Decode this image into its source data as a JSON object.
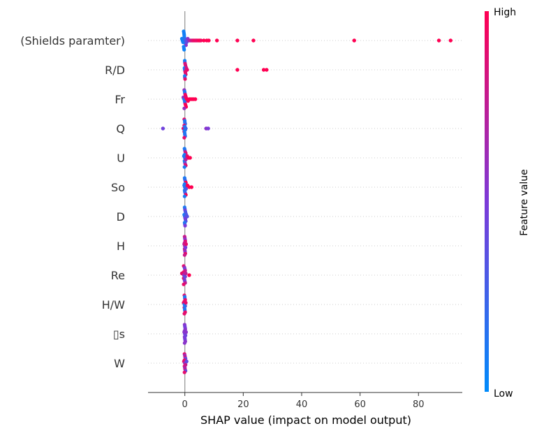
{
  "chart_data": {
    "type": "scatter",
    "subtype": "shap-beeswarm",
    "xlabel": "SHAP value (impact on model output)",
    "xlim": [
      -12.6,
      95
    ],
    "xticks": [
      0,
      20,
      40,
      60,
      80
    ],
    "zero_line": true,
    "colorbar": {
      "title": "Feature value",
      "high_label": "High",
      "low_label": "Low",
      "low_color": "#008bfb",
      "mid_color": "#7c3ad8",
      "high_color": "#ff0052"
    },
    "features": [
      {
        "name": "(Shields paramter)",
        "points": [
          {
            "v": -1.0,
            "c": 0.05
          },
          {
            "v": -0.8,
            "c": 0.1
          },
          {
            "v": -0.6,
            "c": 0.05
          },
          {
            "v": -0.5,
            "c": 0.1
          },
          {
            "v": -0.4,
            "c": 0.05
          },
          {
            "v": -0.2,
            "c": 0.1
          },
          {
            "v": 0.0,
            "c": 0.15
          },
          {
            "v": 0.3,
            "c": 0.3
          },
          {
            "v": 0.6,
            "c": 0.4
          },
          {
            "v": 1.0,
            "c": 0.55
          },
          {
            "v": 1.5,
            "c": 0.65
          },
          {
            "v": 2.0,
            "c": 0.75
          },
          {
            "v": 2.5,
            "c": 0.85
          },
          {
            "v": 3.0,
            "c": 0.9
          },
          {
            "v": 3.5,
            "c": 0.95
          },
          {
            "v": 4.0,
            "c": 0.9
          },
          {
            "v": 4.5,
            "c": 0.95
          },
          {
            "v": 5.0,
            "c": 1.0
          },
          {
            "v": 5.5,
            "c": 0.95
          },
          {
            "v": 6.5,
            "c": 1.0
          },
          {
            "v": 7.5,
            "c": 1.0
          },
          {
            "v": 8.2,
            "c": 1.0
          },
          {
            "v": 11.0,
            "c": 1.0
          },
          {
            "v": 18.0,
            "c": 1.0
          },
          {
            "v": 23.5,
            "c": 1.0
          },
          {
            "v": 58.0,
            "c": 1.0
          },
          {
            "v": 87.0,
            "c": 1.0
          },
          {
            "v": 91.0,
            "c": 1.0
          }
        ]
      },
      {
        "name": "R/D",
        "points": [
          {
            "v": -0.1,
            "c": 0.05
          },
          {
            "v": 0.0,
            "c": 0.2
          },
          {
            "v": 0.2,
            "c": 0.9
          },
          {
            "v": 0.5,
            "c": 0.8
          },
          {
            "v": 0.8,
            "c": 0.9
          },
          {
            "v": 18.0,
            "c": 1.0
          },
          {
            "v": 27.0,
            "c": 1.0
          },
          {
            "v": 28.0,
            "c": 1.0
          }
        ]
      },
      {
        "name": "Fr",
        "points": [
          {
            "v": -0.5,
            "c": 0.6
          },
          {
            "v": -0.2,
            "c": 0.1
          },
          {
            "v": 0.0,
            "c": 0.15
          },
          {
            "v": 0.3,
            "c": 0.9
          },
          {
            "v": 0.7,
            "c": 1.0
          },
          {
            "v": 1.1,
            "c": 1.0
          },
          {
            "v": 1.5,
            "c": 1.0
          },
          {
            "v": 2.0,
            "c": 1.0
          },
          {
            "v": 2.5,
            "c": 1.0
          },
          {
            "v": 3.0,
            "c": 1.0
          },
          {
            "v": 3.6,
            "c": 1.0
          }
        ]
      },
      {
        "name": "Q",
        "points": [
          {
            "v": -7.5,
            "c": 0.45
          },
          {
            "v": -0.5,
            "c": 0.9
          },
          {
            "v": -0.1,
            "c": 0.1
          },
          {
            "v": 0.0,
            "c": 0.15
          },
          {
            "v": 0.3,
            "c": 0.2
          },
          {
            "v": 7.3,
            "c": 0.55
          },
          {
            "v": 8.0,
            "c": 0.5
          }
        ]
      },
      {
        "name": "U",
        "points": [
          {
            "v": -0.3,
            "c": 0.1
          },
          {
            "v": 0.0,
            "c": 0.15
          },
          {
            "v": 0.3,
            "c": 0.7
          },
          {
            "v": 0.8,
            "c": 0.9
          },
          {
            "v": 1.3,
            "c": 1.0
          },
          {
            "v": 1.8,
            "c": 1.0
          }
        ]
      },
      {
        "name": "So",
        "points": [
          {
            "v": -0.2,
            "c": 0.1
          },
          {
            "v": 0.0,
            "c": 0.15
          },
          {
            "v": 0.4,
            "c": 0.3
          },
          {
            "v": 0.9,
            "c": 1.0
          },
          {
            "v": 1.5,
            "c": 1.0
          },
          {
            "v": 2.3,
            "c": 1.0
          }
        ]
      },
      {
        "name": "D",
        "points": [
          {
            "v": -0.2,
            "c": 0.1
          },
          {
            "v": 0.0,
            "c": 0.2
          },
          {
            "v": 0.2,
            "c": 0.5
          },
          {
            "v": 0.5,
            "c": 0.3
          },
          {
            "v": 0.8,
            "c": 0.35
          }
        ]
      },
      {
        "name": "H",
        "points": [
          {
            "v": -0.2,
            "c": 0.8
          },
          {
            "v": 0.0,
            "c": 0.7
          },
          {
            "v": 0.2,
            "c": 0.5
          },
          {
            "v": 0.4,
            "c": 0.9
          }
        ]
      },
      {
        "name": "Re",
        "points": [
          {
            "v": -1.0,
            "c": 0.9
          },
          {
            "v": -0.3,
            "c": 0.6
          },
          {
            "v": 0.0,
            "c": 0.4
          },
          {
            "v": 0.3,
            "c": 0.75
          },
          {
            "v": 1.5,
            "c": 1.0
          }
        ]
      },
      {
        "name": "H/W",
        "points": [
          {
            "v": -0.4,
            "c": 0.9
          },
          {
            "v": -0.1,
            "c": 0.1
          },
          {
            "v": 0.0,
            "c": 0.15
          },
          {
            "v": 0.3,
            "c": 0.9
          }
        ]
      },
      {
        "name": "▯s",
        "points": [
          {
            "v": -0.2,
            "c": 0.55
          },
          {
            "v": 0.0,
            "c": 0.5
          },
          {
            "v": 0.2,
            "c": 0.45
          },
          {
            "v": 0.4,
            "c": 0.55
          }
        ]
      },
      {
        "name": "W",
        "points": [
          {
            "v": -0.3,
            "c": 0.9
          },
          {
            "v": 0.0,
            "c": 0.6
          },
          {
            "v": 0.2,
            "c": 0.8
          },
          {
            "v": 0.6,
            "c": 0.4
          }
        ]
      }
    ]
  }
}
